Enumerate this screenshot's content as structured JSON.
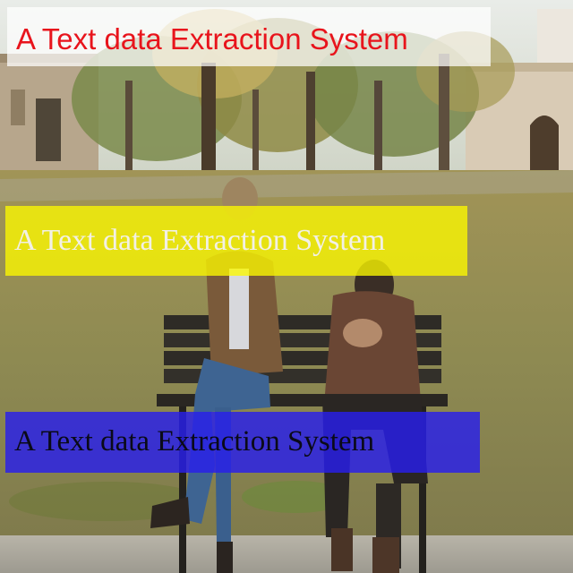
{
  "banners": {
    "top": {
      "text": "A Text data Extraction System",
      "text_color": "#e8141c",
      "background": "#ffffff"
    },
    "middle": {
      "text": "A Text data Extraction System",
      "text_color": "#f2f0e6",
      "background": "#fcf800"
    },
    "bottom": {
      "text": "A Text data Extraction System",
      "text_color": "#0a0a18",
      "background": "#281eeb"
    }
  }
}
